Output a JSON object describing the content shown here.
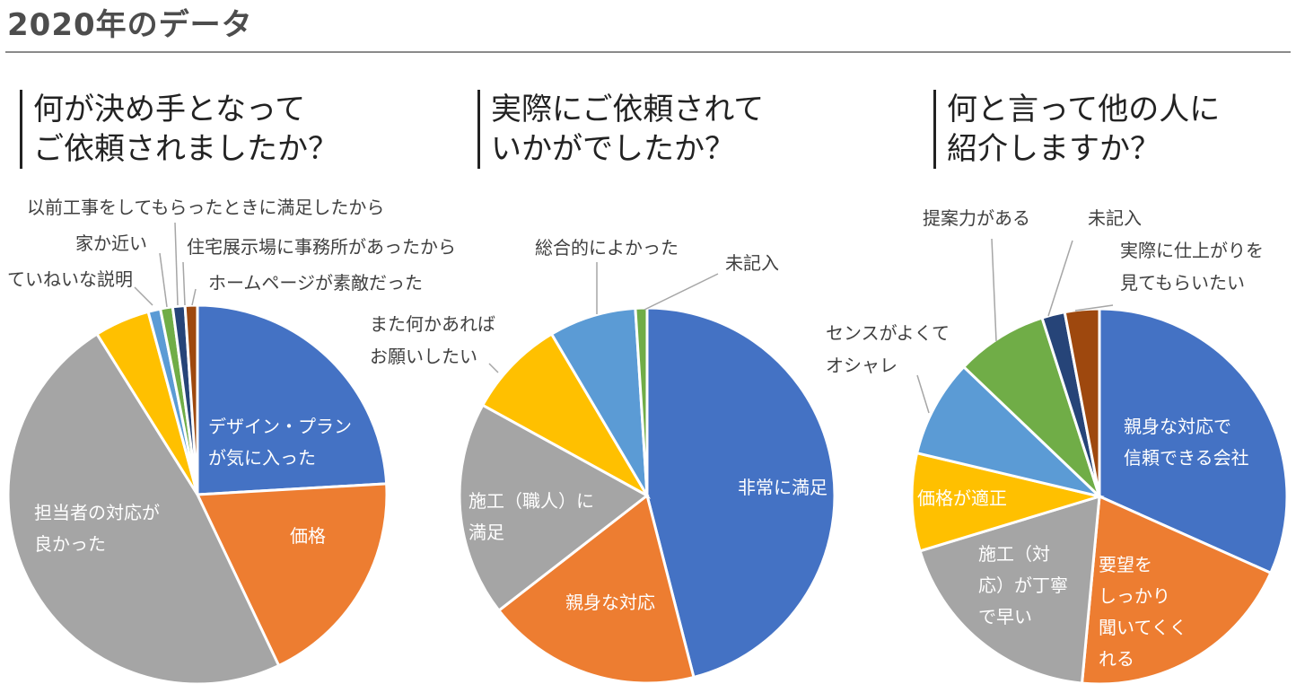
{
  "page": {
    "title": "2020年のデータ"
  },
  "chart_data": [
    {
      "type": "pie",
      "title_lines": [
        "何が決め手となって",
        "ご依頼されましたか？"
      ],
      "slices": [
        {
          "label_lines": [
            "デザイン・プラン",
            "が気に入った"
          ],
          "value": 23.0,
          "color": "#4472c4",
          "label_inside": true
        },
        {
          "label_lines": [
            "価格"
          ],
          "value": 18.0,
          "color": "#ed7d31",
          "label_inside": true
        },
        {
          "label_lines": [
            "担当者の対応が",
            "良かった"
          ],
          "value": 46.0,
          "color": "#a5a5a5",
          "label_inside": true
        },
        {
          "label_lines": [
            "ていねいな説明"
          ],
          "value": 4.5,
          "color": "#ffc000",
          "label_inside": false
        },
        {
          "label_lines": [
            "家か近い"
          ],
          "value": 1.0,
          "color": "#5b9bd5",
          "label_inside": false
        },
        {
          "label_lines": [
            "以前工事をしてもらったときに満足したから"
          ],
          "value": 1.0,
          "color": "#70ad47",
          "label_inside": false
        },
        {
          "label_lines": [
            "住宅展示場に事務所があったから"
          ],
          "value": 1.0,
          "color": "#264478",
          "label_inside": false
        },
        {
          "label_lines": [
            "ホームページが素敵だった"
          ],
          "value": 1.0,
          "color": "#9e480e",
          "label_inside": false
        }
      ]
    },
    {
      "type": "pie",
      "title_lines": [
        "実際にご依頼されて",
        "いかがでしたか？"
      ],
      "slices": [
        {
          "label_lines": [
            "非常に満足"
          ],
          "value": 46.0,
          "color": "#4472c4",
          "label_inside": true
        },
        {
          "label_lines": [
            "親身な対応"
          ],
          "value": 18.5,
          "color": "#ed7d31",
          "label_inside": true
        },
        {
          "label_lines": [
            "施工（職人）に",
            "満足"
          ],
          "value": 18.5,
          "color": "#a5a5a5",
          "label_inside": true
        },
        {
          "label_lines": [
            "また何かあれば",
            "お願いしたい"
          ],
          "value": 8.5,
          "color": "#ffc000",
          "label_inside": false
        },
        {
          "label_lines": [
            "総合的によかった"
          ],
          "value": 7.5,
          "color": "#5b9bd5",
          "label_inside": false
        },
        {
          "label_lines": [
            "未記入"
          ],
          "value": 1.0,
          "color": "#70ad47",
          "label_inside": false
        }
      ]
    },
    {
      "type": "pie",
      "title_lines": [
        "何と言って他の人に",
        "紹介しますか？"
      ],
      "slices": [
        {
          "label_lines": [
            "親身な対応で",
            "信頼できる会社"
          ],
          "value": 32.0,
          "color": "#4472c4",
          "label_inside": true
        },
        {
          "label_lines": [
            "要望を",
            "しっかり",
            "聞いてくく",
            "れる"
          ],
          "value": 20.0,
          "color": "#ed7d31",
          "label_inside": true
        },
        {
          "label_lines": [
            "施工（対",
            "応）が丁寧",
            "で早い"
          ],
          "value": 19.0,
          "color": "#a5a5a5",
          "label_inside": true
        },
        {
          "label_lines": [
            "価格が適正"
          ],
          "value": 8.5,
          "color": "#ffc000",
          "label_inside": true
        },
        {
          "label_lines": [
            "センスがよくて",
            "オシャレ"
          ],
          "value": 8.5,
          "color": "#5b9bd5",
          "label_inside": false
        },
        {
          "label_lines": [
            "提案力がある"
          ],
          "value": 8.0,
          "color": "#70ad47",
          "label_inside": false
        },
        {
          "label_lines": [
            "未記入"
          ],
          "value": 2.0,
          "color": "#264478",
          "label_inside": false
        },
        {
          "label_lines": [
            "実際に仕上がりを",
            "見てもらいたい"
          ],
          "value": 3.0,
          "color": "#9e480e",
          "label_inside": false
        }
      ]
    }
  ]
}
